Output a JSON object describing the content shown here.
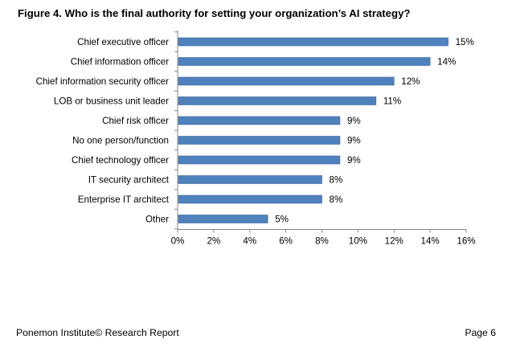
{
  "page": {
    "title": "Figure 4. Who is the final authority for setting your organization’s AI strategy?",
    "footer_left": "Ponemon Institute© Research Report",
    "footer_right": "Page 6"
  },
  "colors": {
    "bar": "#4f81bd",
    "bar_edge": "#3a6699",
    "axis": "#868686"
  },
  "chart_data": {
    "type": "bar",
    "orientation": "horizontal",
    "title": "Figure 4. Who is the final authority for setting your organization’s AI strategy?",
    "categories": [
      "Chief executive officer",
      "Chief information officer",
      "Chief information security officer",
      "LOB or business unit leader",
      "Chief risk officer",
      "No one person/function",
      "Chief technology officer",
      "IT security architect",
      "Enterprise IT architect",
      "Other"
    ],
    "values": [
      15,
      14,
      12,
      11,
      9,
      9,
      9,
      8,
      8,
      5
    ],
    "value_labels": [
      "15%",
      "14%",
      "12%",
      "11%",
      "9%",
      "9%",
      "9%",
      "8%",
      "8%",
      "5%"
    ],
    "x_ticks": [
      0,
      2,
      4,
      6,
      8,
      10,
      12,
      14,
      16
    ],
    "x_tick_labels": [
      "0%",
      "2%",
      "4%",
      "6%",
      "8%",
      "10%",
      "12%",
      "14%",
      "16%"
    ],
    "xlim": [
      0,
      16
    ],
    "grid": false,
    "legend": "none"
  }
}
